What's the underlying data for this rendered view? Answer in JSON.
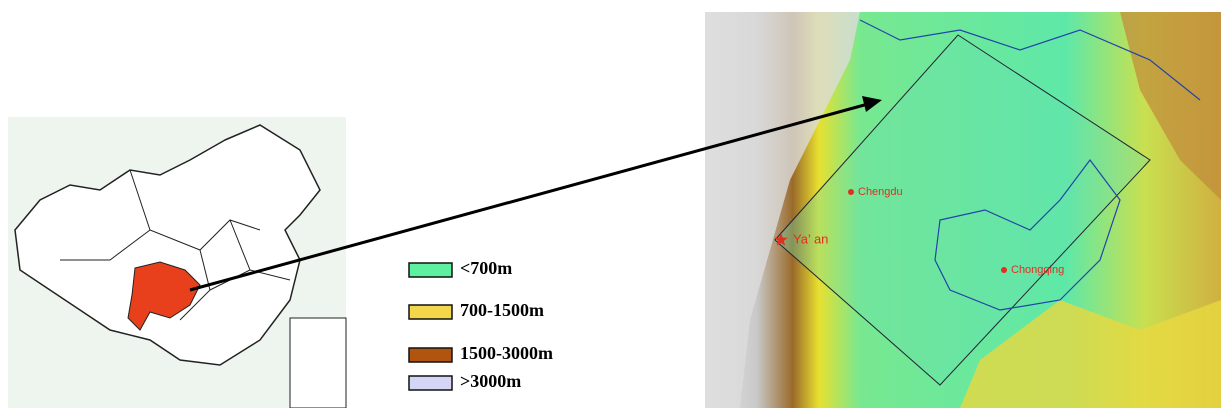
{
  "legend": {
    "items": [
      {
        "label": "<700m",
        "color": "#5ef0a0"
      },
      {
        "label": "700-1500m",
        "color": "#f4d64a"
      },
      {
        "label": "1500-3000m",
        "color": "#b0540f"
      },
      {
        "label": ">3000m",
        "color": "#d4d4f6"
      }
    ]
  },
  "cities": [
    {
      "label": "Chengdu",
      "marker": "dot"
    },
    {
      "label": "Ya’ an",
      "marker": "star"
    },
    {
      "label": "Chongqing",
      "marker": "dot"
    }
  ]
}
